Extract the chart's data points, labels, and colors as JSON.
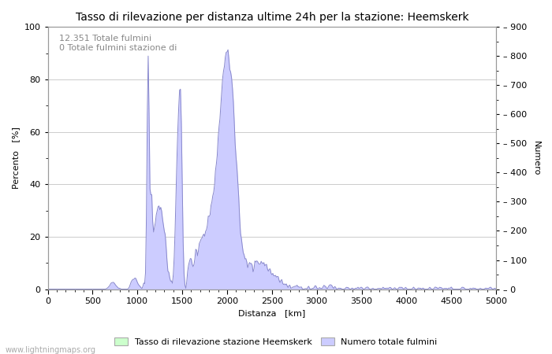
{
  "title": "Tasso di rilevazione per distanza ultime 24h per la stazione: Heemskerk",
  "xlabel": "Distanza   [km]",
  "ylabel_left": "Percento   [%]",
  "ylabel_right": "Numero",
  "annotation_line1": "12.351 Totale fulmini",
  "annotation_line2": "0 Totale fulmini stazione di",
  "xlim": [
    0,
    5000
  ],
  "ylim_left": [
    0,
    100
  ],
  "ylim_right": [
    0,
    900
  ],
  "xticks": [
    0,
    500,
    1000,
    1500,
    2000,
    2500,
    3000,
    3500,
    4000,
    4500,
    5000
  ],
  "yticks_left": [
    0,
    20,
    40,
    60,
    80,
    100
  ],
  "yticks_right": [
    0,
    100,
    200,
    300,
    400,
    500,
    600,
    700,
    800,
    900
  ],
  "legend_label1": "Tasso di rilevazione stazione Heemskerk",
  "legend_label2": "Numero totale fulmini",
  "fill_color_green": "#ccffcc",
  "fill_color_blue": "#ccccff",
  "line_color": "#8888cc",
  "grid_color": "#cccccc",
  "bg_color": "#ffffff",
  "watermark": "www.lightningmaps.org",
  "title_fontsize": 10,
  "axis_fontsize": 8,
  "tick_fontsize": 8,
  "annotation_fontsize": 8
}
